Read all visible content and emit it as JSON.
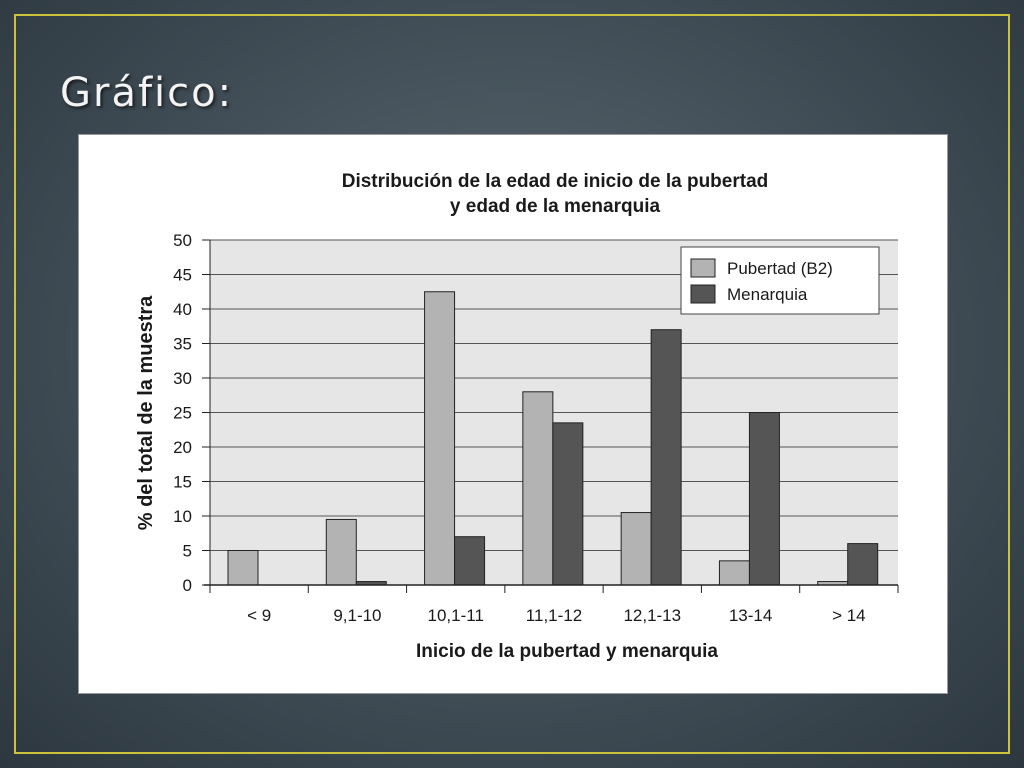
{
  "slide": {
    "title": "Gráfico:"
  },
  "chart_data": {
    "type": "bar",
    "title": "Distribución de la edad de inicio de la pubertad y edad de la menarquia",
    "title_lines": [
      "Distribución de la edad de inicio de la pubertad",
      "y edad de la menarquia"
    ],
    "xlabel": "Inicio de la pubertad y menarquia",
    "ylabel": "% del total de la muestra",
    "categories": [
      "< 9",
      "9,1-10",
      "10,1-11",
      "11,1-12",
      "12,1-13",
      "13-14",
      "> 14"
    ],
    "series": [
      {
        "name": "Pubertad (B2)",
        "color": "#b3b3b3",
        "values": [
          5,
          9.5,
          42.5,
          28,
          10.5,
          3.5,
          0.5
        ]
      },
      {
        "name": "Menarquia",
        "color": "#555555",
        "values": [
          0,
          0.5,
          7,
          23.5,
          37,
          25,
          6
        ]
      }
    ],
    "yticks": [
      0,
      5,
      10,
      15,
      20,
      25,
      30,
      35,
      40,
      45,
      50
    ],
    "ylim": [
      0,
      50
    ],
    "grid": true,
    "legend_position": "top-right",
    "plot_background": "#e6e6e6"
  }
}
